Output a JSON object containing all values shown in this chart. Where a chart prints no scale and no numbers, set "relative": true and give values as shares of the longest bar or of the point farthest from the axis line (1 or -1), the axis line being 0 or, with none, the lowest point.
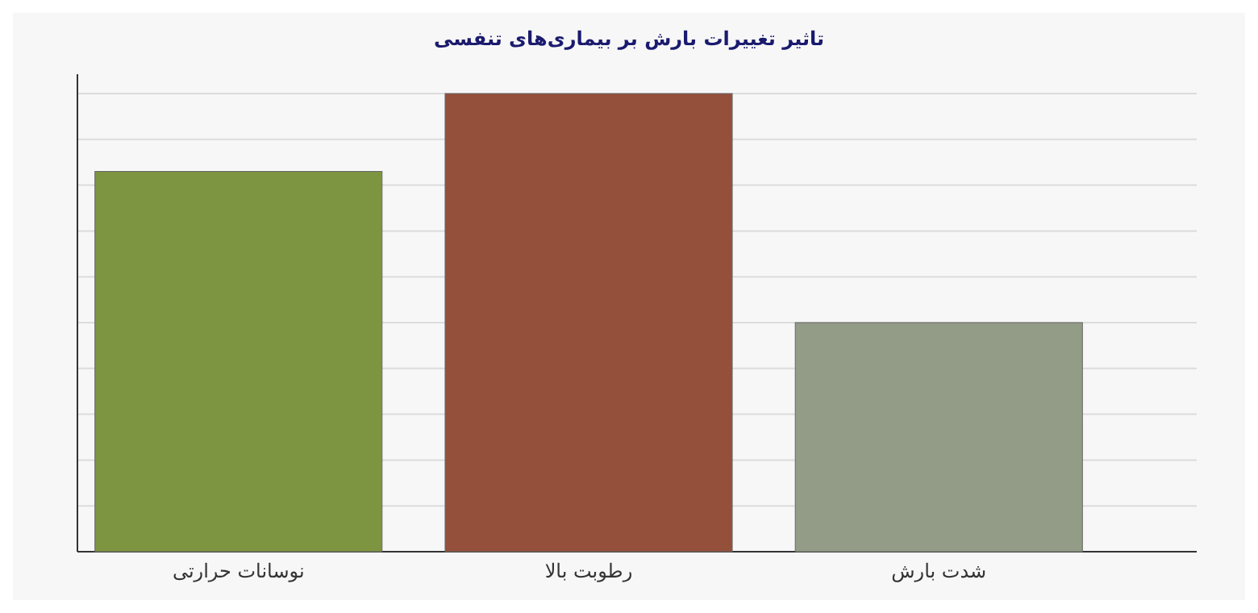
{
  "chart_data": {
    "type": "bar",
    "title": "تاثیر تغییرات بارش بر بیماری‌های تنفسی",
    "categories": [
      "نوسانات حرارتی",
      "رطوبت بالا",
      "شدت بارش"
    ],
    "values": [
      0.83,
      1,
      0.5
    ],
    "colors": [
      "#7d9440",
      "#94503a",
      "#929c86"
    ],
    "relative": true,
    "grid": "y"
  }
}
